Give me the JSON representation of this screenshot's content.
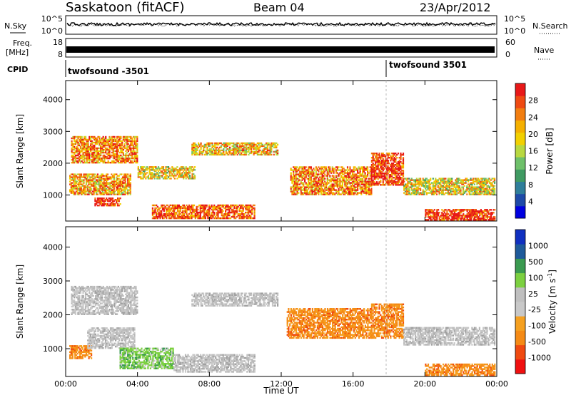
{
  "header": {
    "site": "Saskatoon (fitACF)",
    "beam": "Beam 04",
    "date": "23/Apr/2012"
  },
  "labels": {
    "nsky": "N.Sky",
    "nsearch": "N.Search",
    "freq_line1": "Freq.",
    "freq_line2": "[MHz]",
    "nave": "Nave",
    "cpid": "CPID"
  },
  "cpid_segments": [
    {
      "label": "twofsound -3501"
    },
    {
      "label": "twofsound 3501"
    }
  ],
  "chart_data": [
    {
      "type": "line",
      "name": "noise-strip",
      "y_ticks_left": [
        "10^5",
        "10^0"
      ],
      "y_ticks_right": [
        "10^5",
        "10^0"
      ],
      "x_range_hours": [
        0,
        24
      ],
      "series": [
        {
          "key": "nsky",
          "level": 0.55
        },
        {
          "key": "nsearch",
          "level": 0.5
        }
      ]
    },
    {
      "type": "line",
      "name": "freq-nave-strip",
      "y_ticks_left": [
        "18",
        "8"
      ],
      "y_ticks_right": [
        "60",
        "0"
      ],
      "frequency_level_mhz": 12.5
    },
    {
      "type": "heatmap",
      "name": "power",
      "ylabel": "Slant Range [km]",
      "xlabel": "Time UT",
      "ylim": [
        180,
        4600
      ],
      "y_ticks": [
        1000,
        2000,
        3000,
        4000
      ],
      "x_ticks": [
        "00:00",
        "04:00",
        "08:00",
        "12:00",
        "16:00",
        "20:00",
        "00:00"
      ],
      "xlim_hours": [
        0,
        24
      ],
      "colorbar_label": "Power [dB]",
      "colorbar_ticks": [
        "28",
        "24",
        "20",
        "16",
        "12",
        "8",
        "4"
      ],
      "colorbar_colors": [
        "#0000e0",
        "#1e4aa8",
        "#2f7e9a",
        "#3f9a62",
        "#6ec06a",
        "#b8d840",
        "#f2d000",
        "#f5b000",
        "#f27e10",
        "#ef4a12",
        "#e81818"
      ],
      "echo_bands": [
        {
          "t_start": 0.3,
          "t_end": 4.0,
          "range_start": 2000,
          "range_end": 2850,
          "level": 0.75
        },
        {
          "t_start": 0.2,
          "t_end": 3.6,
          "range_start": 1000,
          "range_end": 1650,
          "level": 0.7
        },
        {
          "t_start": 1.6,
          "t_end": 3.0,
          "range_start": 650,
          "range_end": 900,
          "level": 0.9
        },
        {
          "t_start": 4.0,
          "t_end": 7.2,
          "range_start": 1500,
          "range_end": 1900,
          "level": 0.6
        },
        {
          "t_start": 4.8,
          "t_end": 10.5,
          "range_start": 250,
          "range_end": 700,
          "level": 0.85
        },
        {
          "t_start": 7.0,
          "t_end": 11.8,
          "range_start": 2250,
          "range_end": 2650,
          "level": 0.65
        },
        {
          "t_start": 12.5,
          "t_end": 17.0,
          "range_start": 1000,
          "range_end": 1900,
          "level": 0.75
        },
        {
          "t_start": 17.0,
          "t_end": 18.8,
          "range_start": 1300,
          "range_end": 2300,
          "level": 0.9
        },
        {
          "t_start": 18.8,
          "t_end": 23.9,
          "range_start": 1000,
          "range_end": 1500,
          "level": 0.6
        },
        {
          "t_start": 20.0,
          "t_end": 23.9,
          "range_start": 200,
          "range_end": 550,
          "level": 0.95
        }
      ]
    },
    {
      "type": "heatmap",
      "name": "velocity",
      "ylabel": "Slant Range [km]",
      "xlabel": "Time UT",
      "ylim": [
        180,
        4600
      ],
      "y_ticks": [
        1000,
        2000,
        3000,
        4000
      ],
      "x_ticks": [
        "00:00",
        "04:00",
        "08:00",
        "12:00",
        "16:00",
        "20:00",
        "00:00"
      ],
      "xlim_hours": [
        0,
        24
      ],
      "colorbar_label_main": "Velocity [m s",
      "colorbar_label_exp": "-1",
      "colorbar_label_close": "]",
      "colorbar_ticks": [
        "1000",
        "500",
        "100",
        "25",
        "-25",
        "-100",
        "-500",
        "-1000"
      ],
      "colorbar_colors": [
        "#f01010",
        "#f04a10",
        "#f58a15",
        "#f5a020",
        "#c8c8c8",
        "#bfbfbf",
        "#7cd040",
        "#3a9a50",
        "#1e5a9a",
        "#1030c0"
      ],
      "echo_bands": [
        {
          "t_start": 0.3,
          "t_end": 4.0,
          "range_start": 2000,
          "range_end": 2850,
          "velocity_class": "grey"
        },
        {
          "t_start": 0.2,
          "t_end": 1.4,
          "range_start": 700,
          "range_end": 1100,
          "velocity_class": "orange"
        },
        {
          "t_start": 1.2,
          "t_end": 3.8,
          "range_start": 1000,
          "range_end": 1600,
          "velocity_class": "grey"
        },
        {
          "t_start": 3.0,
          "t_end": 6.0,
          "range_start": 400,
          "range_end": 1000,
          "velocity_class": "green"
        },
        {
          "t_start": 6.0,
          "t_end": 10.5,
          "range_start": 300,
          "range_end": 800,
          "velocity_class": "grey"
        },
        {
          "t_start": 7.0,
          "t_end": 11.8,
          "range_start": 2250,
          "range_end": 2650,
          "velocity_class": "grey"
        },
        {
          "t_start": 12.3,
          "t_end": 17.0,
          "range_start": 1300,
          "range_end": 2200,
          "velocity_class": "orange"
        },
        {
          "t_start": 17.0,
          "t_end": 18.8,
          "range_start": 1300,
          "range_end": 2300,
          "velocity_class": "orange"
        },
        {
          "t_start": 18.8,
          "t_end": 23.9,
          "range_start": 1100,
          "range_end": 1600,
          "velocity_class": "grey"
        },
        {
          "t_start": 20.0,
          "t_end": 23.9,
          "range_start": 200,
          "range_end": 550,
          "velocity_class": "orange"
        }
      ]
    }
  ]
}
